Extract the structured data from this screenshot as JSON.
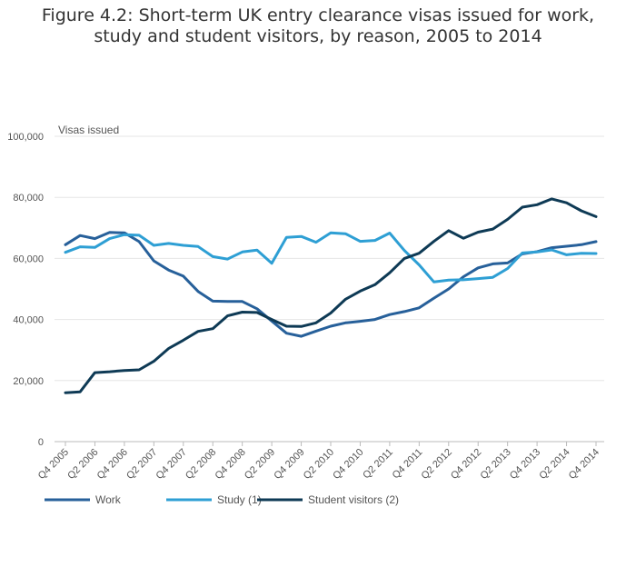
{
  "chart_data": {
    "type": "line",
    "title": "Figure 4.2: Short-term UK entry clearance visas issued for work, study and student visitors, by reason, 2005 to 2014",
    "ylabel": "Visas issued",
    "ylim": [
      0,
      100000
    ],
    "yticks": [
      "0",
      "20,000",
      "40,000",
      "60,000",
      "80,000",
      "100,000"
    ],
    "ytick_values": [
      0,
      20000,
      40000,
      60000,
      80000,
      100000
    ],
    "x": [
      "Q4 2005",
      "Q1 2006",
      "Q2 2006",
      "Q3 2006",
      "Q4 2006",
      "Q1 2007",
      "Q2 2007",
      "Q3 2007",
      "Q4 2007",
      "Q1 2008",
      "Q2 2008",
      "Q3 2008",
      "Q4 2008",
      "Q1 2009",
      "Q2 2009",
      "Q3 2009",
      "Q4 2009",
      "Q1 2010",
      "Q2 2010",
      "Q3 2010",
      "Q4 2010",
      "Q1 2011",
      "Q2 2011",
      "Q3 2011",
      "Q4 2011",
      "Q1 2012",
      "Q2 2012",
      "Q3 2012",
      "Q4 2012",
      "Q1 2013",
      "Q2 2013",
      "Q3 2013",
      "Q4 2013",
      "Q1 2014",
      "Q2 2014",
      "Q3 2014",
      "Q4 2014"
    ],
    "xtick_labels": [
      "Q4 2005",
      "Q2 2006",
      "Q4 2006",
      "Q2 2007",
      "Q4 2007",
      "Q2 2008",
      "Q4 2008",
      "Q2 2009",
      "Q4 2009",
      "Q2 2010",
      "Q4 2010",
      "Q2 2011",
      "Q4 2011",
      "Q2 2012",
      "Q4 2012",
      "Q2 2013",
      "Q4 2013",
      "Q2 2014",
      "Q4 2014"
    ],
    "legend_position": "bottom-left",
    "grid": true,
    "series": [
      {
        "name": "Work",
        "color": "#27609a",
        "values": [
          64500,
          67500,
          66500,
          68500,
          68400,
          65500,
          59200,
          56200,
          54200,
          49200,
          46000,
          45900,
          45900,
          43500,
          39500,
          35500,
          34500,
          36200,
          37800,
          38900,
          39400,
          40000,
          41600,
          42600,
          43800,
          47000,
          50000,
          54000,
          56900,
          58200,
          58500,
          61500,
          62200,
          63500,
          64000,
          64500,
          65500
        ]
      },
      {
        "name": "Study (1)",
        "color": "#2e9fd4",
        "values": [
          62000,
          63800,
          63600,
          66500,
          67800,
          67600,
          64300,
          64900,
          64300,
          63900,
          60600,
          59800,
          62100,
          62700,
          58400,
          66900,
          67200,
          65300,
          68400,
          68100,
          65600,
          65900,
          68300,
          62600,
          57900,
          52300,
          52900,
          53000,
          53400,
          53800,
          56700,
          61800,
          62100,
          62800,
          61200,
          61700,
          61600
        ]
      },
      {
        "name": "Student visitors (2)",
        "color": "#0e3a55",
        "values": [
          16000,
          16300,
          22600,
          22900,
          23300,
          23500,
          26300,
          30500,
          33200,
          36100,
          37000,
          41200,
          42400,
          42300,
          40000,
          37800,
          37700,
          38900,
          42100,
          46600,
          49300,
          51400,
          55300,
          60000,
          61700,
          65600,
          69100,
          66600,
          68600,
          69600,
          72800,
          76800,
          77600,
          79500,
          78200,
          75600,
          73700
        ]
      }
    ]
  }
}
